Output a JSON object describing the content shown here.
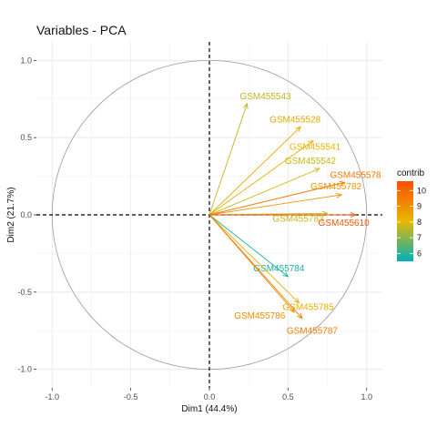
{
  "chart_data": {
    "type": "scatter",
    "title": "Variables - PCA",
    "xlabel": "Dim1 (44.4%)",
    "ylabel": "Dim2 (21.7%)",
    "xlim": [
      -1.1,
      1.1
    ],
    "ylim": [
      -1.12,
      1.12
    ],
    "x_ticks": [
      -1.0,
      -0.5,
      0.0,
      0.5,
      1.0
    ],
    "x_tick_labels": [
      "-1.0",
      "-0.5",
      "0.0",
      "0.5",
      "1.0"
    ],
    "y_ticks": [
      1.0,
      0.5,
      0.0,
      -0.5,
      -1.0
    ],
    "y_tick_labels": [
      "1.0",
      "0.5",
      "0.0",
      "-0.5",
      "-1.0"
    ],
    "grid": true,
    "correlation_circle": true,
    "reference_lines": [
      0,
      0
    ],
    "vectors": [
      {
        "name": "GSM455543",
        "x": 0.24,
        "y": 0.72,
        "contrib": 7.6
      },
      {
        "name": "GSM455528",
        "x": 0.58,
        "y": 0.57,
        "contrib": 8.4
      },
      {
        "name": "GSM455541",
        "x": 0.66,
        "y": 0.48,
        "contrib": 8.2
      },
      {
        "name": "GSM455542",
        "x": 0.7,
        "y": 0.3,
        "contrib": 7.8
      },
      {
        "name": "GSM455578",
        "x": 0.86,
        "y": 0.21,
        "contrib": 9.6
      },
      {
        "name": "GSM455782",
        "x": 0.84,
        "y": 0.13,
        "contrib": 8.9
      },
      {
        "name": "GSM455783",
        "x": 0.75,
        "y": 0.01,
        "contrib": 7.7
      },
      {
        "name": "GSM455610",
        "x": 0.93,
        "y": 0.0,
        "contrib": 10.4
      },
      {
        "name": "GSM455784",
        "x": 0.5,
        "y": -0.4,
        "contrib": 5.8
      },
      {
        "name": "GSM455785",
        "x": 0.57,
        "y": -0.57,
        "contrib": 8.3
      },
      {
        "name": "GSM455786",
        "x": 0.54,
        "y": -0.63,
        "contrib": 9.1
      },
      {
        "name": "GSM455787",
        "x": 0.59,
        "y": -0.67,
        "contrib": 9.5
      }
    ],
    "legend": {
      "title": "contrib",
      "position": "right",
      "range": [
        5.5,
        10.6
      ],
      "ticks": [
        6,
        7,
        8,
        9,
        10
      ],
      "tick_labels": [
        "6",
        "7",
        "8",
        "9",
        "10"
      ],
      "gradient": [
        "#00AFBB",
        "#E7B800",
        "#FC4E07"
      ]
    }
  }
}
